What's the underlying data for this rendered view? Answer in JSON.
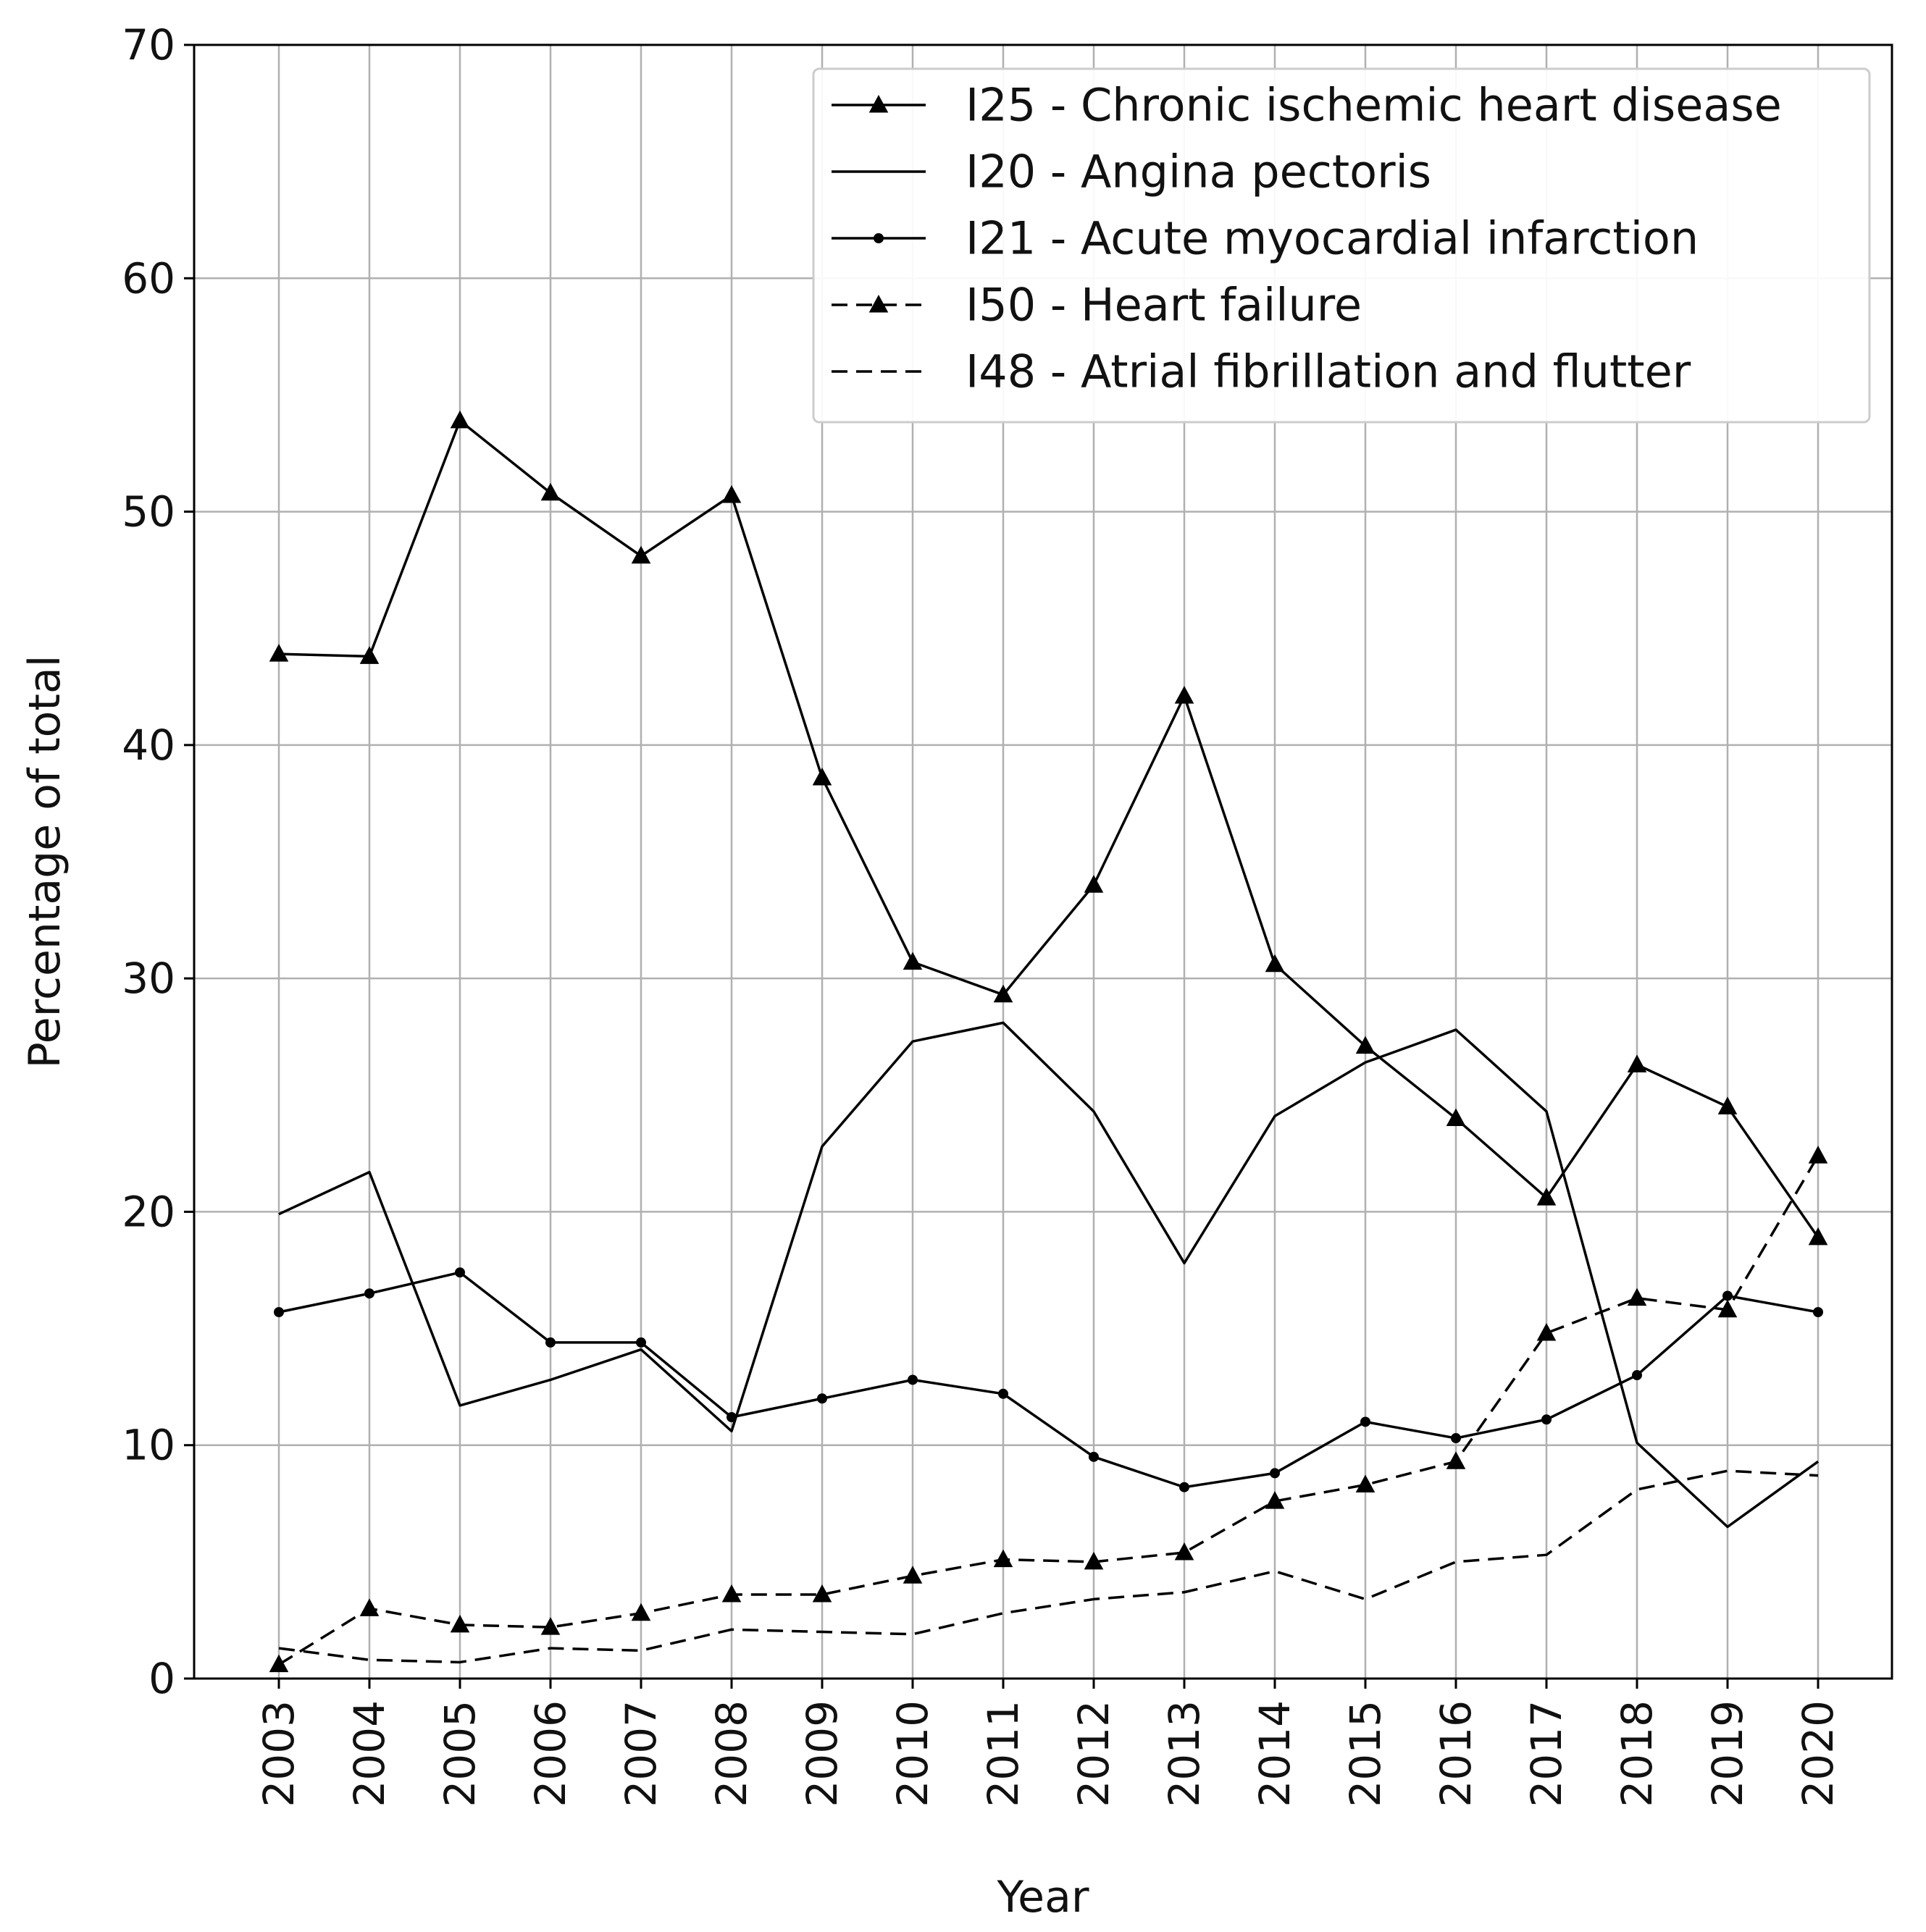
{
  "chart_data": {
    "type": "line",
    "title": "",
    "xlabel": "Year",
    "ylabel": "Percentage of total",
    "ylim": [
      0,
      70
    ],
    "yticks": [
      "0",
      "10",
      "20",
      "30",
      "40",
      "50",
      "60",
      "70"
    ],
    "grid": true,
    "legend_position": "top-right",
    "x": [
      "2003",
      "2004",
      "2005",
      "2006",
      "2007",
      "2008",
      "2009",
      "2010",
      "2011",
      "2012",
      "2013",
      "2014",
      "2015",
      "2016",
      "2017",
      "2018",
      "2019",
      "2020"
    ],
    "series": [
      {
        "name": "I25 - Chronic ischemic heart disease",
        "marker": "triangle",
        "dash": "solid",
        "values": [
          43.9,
          43.8,
          53.9,
          50.8,
          48.1,
          50.7,
          38.6,
          30.7,
          29.3,
          34.0,
          42.1,
          30.6,
          27.1,
          24.0,
          20.6,
          26.3,
          24.5,
          18.9
        ]
      },
      {
        "name": "I20 - Angina pectoris",
        "marker": "none",
        "dash": "solid",
        "values": [
          19.9,
          21.7,
          11.7,
          12.8,
          14.1,
          10.6,
          22.8,
          27.3,
          28.1,
          24.3,
          17.8,
          24.1,
          26.4,
          27.8,
          24.3,
          10.1,
          6.5,
          9.3
        ]
      },
      {
        "name": "I21 - Acute myocardial infarction",
        "marker": "dot",
        "dash": "solid",
        "values": [
          15.7,
          16.5,
          17.4,
          14.4,
          14.4,
          11.2,
          12.0,
          12.8,
          12.2,
          9.5,
          8.2,
          8.8,
          11.0,
          10.3,
          11.1,
          13.0,
          16.4,
          15.7
        ]
      },
      {
        "name": "I50 - Heart failure",
        "marker": "triangle",
        "dash": "dashed",
        "values": [
          0.6,
          3.0,
          2.3,
          2.2,
          2.8,
          3.6,
          3.6,
          4.4,
          5.1,
          5.0,
          5.4,
          7.6,
          8.3,
          9.3,
          14.8,
          16.3,
          15.8,
          22.4
        ]
      },
      {
        "name": "I48 - Atrial fibrillation and flutter",
        "marker": "none",
        "dash": "dashed",
        "values": [
          1.3,
          0.8,
          0.7,
          1.3,
          1.2,
          2.1,
          2.0,
          1.9,
          2.8,
          3.4,
          3.7,
          4.6,
          3.4,
          5.0,
          5.3,
          8.1,
          8.9,
          8.7
        ]
      }
    ]
  }
}
